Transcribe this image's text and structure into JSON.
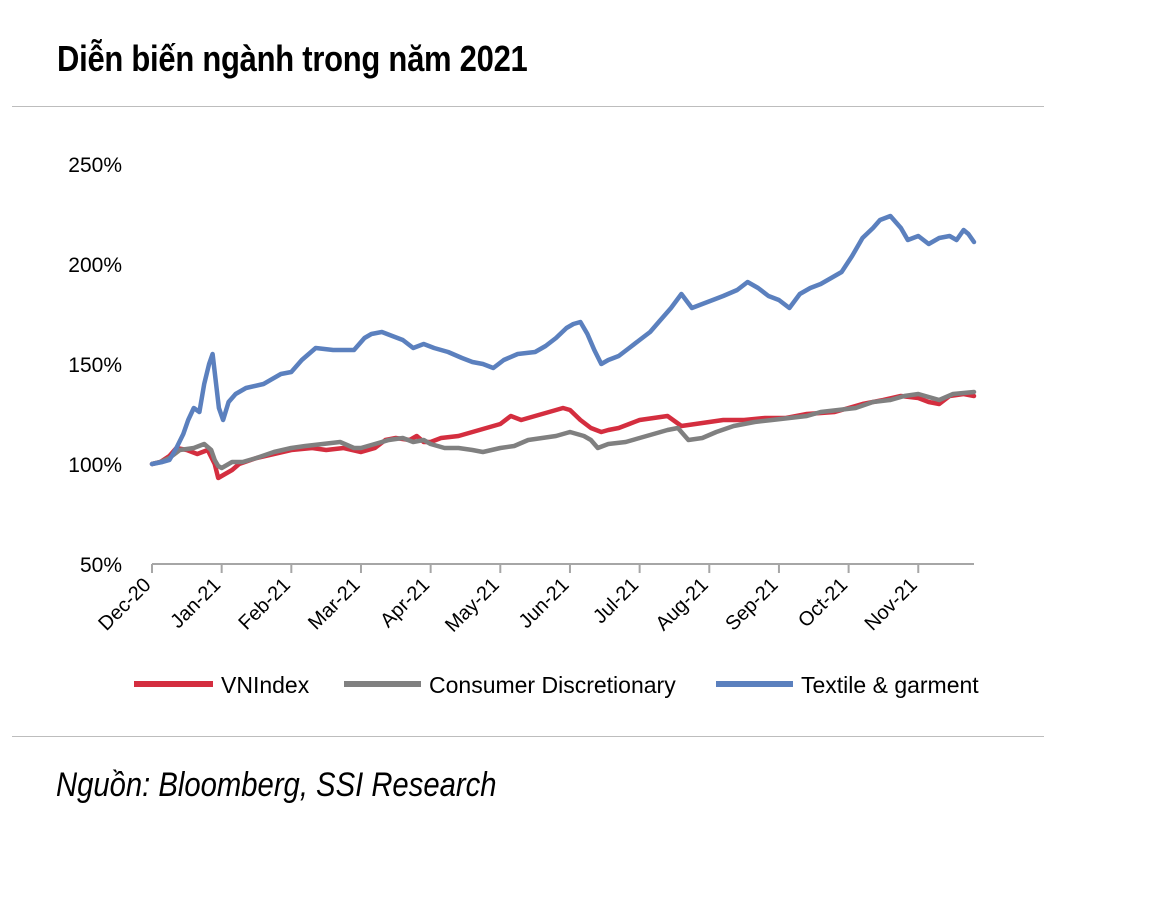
{
  "title": "Diễn biến ngành trong năm 2021",
  "source": "Nguồn: Bloomberg, SSI Research",
  "chart_data": {
    "type": "line",
    "title": "Diễn biến ngành trong năm 2021",
    "xlabel": "",
    "ylabel": "",
    "ylim": [
      50,
      250
    ],
    "yticks": [
      50,
      100,
      150,
      200,
      250
    ],
    "ytick_labels": [
      "50%",
      "100%",
      "150%",
      "200%",
      "250%"
    ],
    "categories": [
      "Dec-20",
      "Jan-21",
      "Feb-21",
      "Mar-21",
      "Apr-21",
      "May-21",
      "Jun-21",
      "Jul-21",
      "Aug-21",
      "Sep-21",
      "Oct-21",
      "Nov-21"
    ],
    "x_end": 11.8,
    "legend_position": "bottom",
    "grid": false,
    "series": [
      {
        "name": "VNIndex",
        "color": "#d42e3f",
        "points": [
          [
            0,
            100
          ],
          [
            0.12,
            101
          ],
          [
            0.25,
            104
          ],
          [
            0.35,
            108
          ],
          [
            0.5,
            107
          ],
          [
            0.65,
            105
          ],
          [
            0.8,
            107
          ],
          [
            0.9,
            100
          ],
          [
            0.95,
            93
          ],
          [
            1.05,
            95
          ],
          [
            1.15,
            97
          ],
          [
            1.25,
            100
          ],
          [
            1.5,
            103
          ],
          [
            1.75,
            105
          ],
          [
            2.0,
            107
          ],
          [
            2.3,
            108
          ],
          [
            2.5,
            107
          ],
          [
            2.75,
            108
          ],
          [
            3.0,
            106
          ],
          [
            3.2,
            108
          ],
          [
            3.35,
            112
          ],
          [
            3.5,
            113
          ],
          [
            3.7,
            112
          ],
          [
            3.8,
            114
          ],
          [
            3.9,
            111
          ],
          [
            4.0,
            111
          ],
          [
            4.15,
            113
          ],
          [
            4.4,
            114
          ],
          [
            4.7,
            117
          ],
          [
            5.0,
            120
          ],
          [
            5.15,
            124
          ],
          [
            5.3,
            122
          ],
          [
            5.5,
            124
          ],
          [
            5.7,
            126
          ],
          [
            5.9,
            128
          ],
          [
            6.0,
            127
          ],
          [
            6.15,
            122
          ],
          [
            6.3,
            118
          ],
          [
            6.45,
            116
          ],
          [
            6.55,
            117
          ],
          [
            6.7,
            118
          ],
          [
            6.85,
            120
          ],
          [
            7.0,
            122
          ],
          [
            7.2,
            123
          ],
          [
            7.4,
            124
          ],
          [
            7.6,
            119
          ],
          [
            7.8,
            120
          ],
          [
            8.0,
            121
          ],
          [
            8.2,
            122
          ],
          [
            8.5,
            122
          ],
          [
            8.8,
            123
          ],
          [
            9.1,
            123
          ],
          [
            9.4,
            125
          ],
          [
            9.8,
            126
          ],
          [
            10.0,
            128
          ],
          [
            10.2,
            130
          ],
          [
            10.5,
            132
          ],
          [
            10.75,
            134
          ],
          [
            11.0,
            133
          ],
          [
            11.15,
            131
          ],
          [
            11.3,
            130
          ],
          [
            11.45,
            134
          ],
          [
            11.65,
            135
          ],
          [
            11.8,
            134
          ]
        ]
      },
      {
        "name": "Consumer Discretionary",
        "color": "#808080",
        "points": [
          [
            0,
            100
          ],
          [
            0.12,
            101
          ],
          [
            0.25,
            103
          ],
          [
            0.4,
            107
          ],
          [
            0.6,
            108
          ],
          [
            0.75,
            110
          ],
          [
            0.85,
            107
          ],
          [
            0.9,
            102
          ],
          [
            0.95,
            99
          ],
          [
            1.0,
            98
          ],
          [
            1.15,
            101
          ],
          [
            1.3,
            101
          ],
          [
            1.5,
            103
          ],
          [
            1.75,
            106
          ],
          [
            2.0,
            108
          ],
          [
            2.2,
            109
          ],
          [
            2.45,
            110
          ],
          [
            2.7,
            111
          ],
          [
            2.9,
            108
          ],
          [
            3.0,
            108
          ],
          [
            3.2,
            110
          ],
          [
            3.4,
            112
          ],
          [
            3.6,
            113
          ],
          [
            3.75,
            111
          ],
          [
            3.9,
            112
          ],
          [
            4.0,
            110
          ],
          [
            4.2,
            108
          ],
          [
            4.4,
            108
          ],
          [
            4.6,
            107
          ],
          [
            4.75,
            106
          ],
          [
            5.0,
            108
          ],
          [
            5.2,
            109
          ],
          [
            5.4,
            112
          ],
          [
            5.6,
            113
          ],
          [
            5.8,
            114
          ],
          [
            6.0,
            116
          ],
          [
            6.2,
            114
          ],
          [
            6.3,
            112
          ],
          [
            6.4,
            108
          ],
          [
            6.55,
            110
          ],
          [
            6.8,
            111
          ],
          [
            7.0,
            113
          ],
          [
            7.2,
            115
          ],
          [
            7.4,
            117
          ],
          [
            7.55,
            118
          ],
          [
            7.7,
            112
          ],
          [
            7.9,
            113
          ],
          [
            8.1,
            116
          ],
          [
            8.35,
            119
          ],
          [
            8.65,
            121
          ],
          [
            8.9,
            122
          ],
          [
            9.15,
            123
          ],
          [
            9.4,
            124
          ],
          [
            9.6,
            126
          ],
          [
            9.85,
            127
          ],
          [
            10.1,
            128
          ],
          [
            10.35,
            131
          ],
          [
            10.6,
            132
          ],
          [
            10.8,
            134
          ],
          [
            11.0,
            135
          ],
          [
            11.1,
            134
          ],
          [
            11.2,
            133
          ],
          [
            11.3,
            132
          ],
          [
            11.5,
            135
          ],
          [
            11.8,
            136
          ]
        ]
      },
      {
        "name": "Textile & garment",
        "color": "#5b80be",
        "points": [
          [
            0,
            100
          ],
          [
            0.15,
            101
          ],
          [
            0.25,
            102
          ],
          [
            0.35,
            108
          ],
          [
            0.45,
            115
          ],
          [
            0.52,
            122
          ],
          [
            0.6,
            128
          ],
          [
            0.68,
            126
          ],
          [
            0.75,
            140
          ],
          [
            0.82,
            150
          ],
          [
            0.87,
            155
          ],
          [
            0.92,
            140
          ],
          [
            0.96,
            128
          ],
          [
            1.02,
            122
          ],
          [
            1.1,
            131
          ],
          [
            1.2,
            135
          ],
          [
            1.35,
            138
          ],
          [
            1.6,
            140
          ],
          [
            1.85,
            145
          ],
          [
            2.0,
            146
          ],
          [
            2.15,
            152
          ],
          [
            2.35,
            158
          ],
          [
            2.6,
            157
          ],
          [
            2.9,
            157
          ],
          [
            3.05,
            163
          ],
          [
            3.15,
            165
          ],
          [
            3.3,
            166
          ],
          [
            3.45,
            164
          ],
          [
            3.6,
            162
          ],
          [
            3.75,
            158
          ],
          [
            3.9,
            160
          ],
          [
            4.05,
            158
          ],
          [
            4.25,
            156
          ],
          [
            4.45,
            153
          ],
          [
            4.6,
            151
          ],
          [
            4.75,
            150
          ],
          [
            4.9,
            148
          ],
          [
            5.05,
            152
          ],
          [
            5.25,
            155
          ],
          [
            5.5,
            156
          ],
          [
            5.65,
            159
          ],
          [
            5.8,
            163
          ],
          [
            5.95,
            168
          ],
          [
            6.05,
            170
          ],
          [
            6.15,
            171
          ],
          [
            6.25,
            165
          ],
          [
            6.35,
            157
          ],
          [
            6.45,
            150
          ],
          [
            6.55,
            152
          ],
          [
            6.7,
            154
          ],
          [
            6.85,
            158
          ],
          [
            7.0,
            162
          ],
          [
            7.15,
            166
          ],
          [
            7.3,
            172
          ],
          [
            7.45,
            178
          ],
          [
            7.6,
            185
          ],
          [
            7.75,
            178
          ],
          [
            7.9,
            180
          ],
          [
            8.05,
            182
          ],
          [
            8.2,
            184
          ],
          [
            8.4,
            187
          ],
          [
            8.55,
            191
          ],
          [
            8.7,
            188
          ],
          [
            8.85,
            184
          ],
          [
            9.0,
            182
          ],
          [
            9.15,
            178
          ],
          [
            9.3,
            185
          ],
          [
            9.45,
            188
          ],
          [
            9.6,
            190
          ],
          [
            9.75,
            193
          ],
          [
            9.9,
            196
          ],
          [
            10.05,
            204
          ],
          [
            10.2,
            213
          ],
          [
            10.35,
            218
          ],
          [
            10.45,
            222
          ],
          [
            10.6,
            224
          ],
          [
            10.75,
            218
          ],
          [
            10.85,
            212
          ],
          [
            11.0,
            214
          ],
          [
            11.15,
            210
          ],
          [
            11.3,
            213
          ],
          [
            11.45,
            214
          ],
          [
            11.55,
            212
          ],
          [
            11.65,
            217
          ],
          [
            11.72,
            215
          ],
          [
            11.8,
            211
          ]
        ]
      }
    ]
  }
}
